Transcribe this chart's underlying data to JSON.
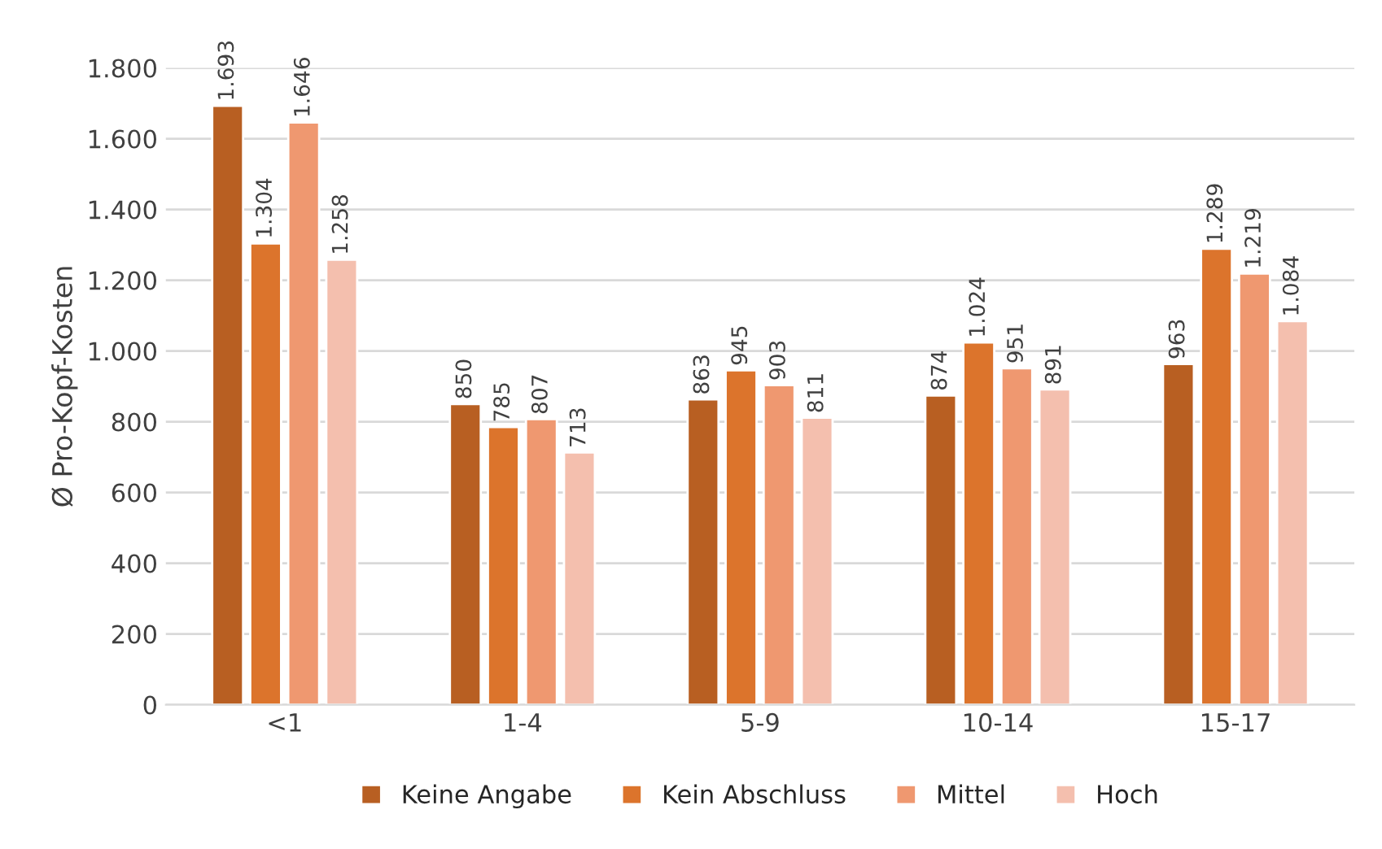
{
  "chart_data": {
    "type": "bar",
    "ylabel": "Ø Pro-Kopf-Kosten",
    "categories": [
      "<1",
      "1-4",
      "5-9",
      "10-14",
      "15-17"
    ],
    "series": [
      {
        "name": "Keine Angabe",
        "color": "#b85f22",
        "values": [
          1693,
          850,
          863,
          874,
          963
        ],
        "value_labels": [
          "1.693",
          "850",
          "863",
          "874",
          "963"
        ]
      },
      {
        "name": "Kein Abschluss",
        "color": "#dc742c",
        "values": [
          1304,
          785,
          945,
          1024,
          1289
        ],
        "value_labels": [
          "1.304",
          "785",
          "945",
          "1.024",
          "1.289"
        ]
      },
      {
        "name": "Mittel",
        "color": "#ef9870",
        "values": [
          1646,
          807,
          903,
          951,
          1219
        ],
        "value_labels": [
          "1.646",
          "807",
          "903",
          "951",
          "1.219"
        ]
      },
      {
        "name": "Hoch",
        "color": "#f4bfae",
        "values": [
          1258,
          713,
          811,
          891,
          1084
        ],
        "value_labels": [
          "1.258",
          "713",
          "811",
          "891",
          "1.084"
        ]
      }
    ],
    "ylim": [
      0,
      1800
    ],
    "yticks": [
      0,
      200,
      400,
      600,
      800,
      {
        "value": 1000,
        "label": "1.000"
      },
      {
        "value": 1200,
        "label": "1.200"
      },
      {
        "value": 1400,
        "label": "1.400"
      },
      {
        "value": 1600,
        "label": "1.600"
      },
      {
        "value": 1800,
        "label": "1.800"
      }
    ],
    "grid": "y",
    "legend": "bottom"
  }
}
